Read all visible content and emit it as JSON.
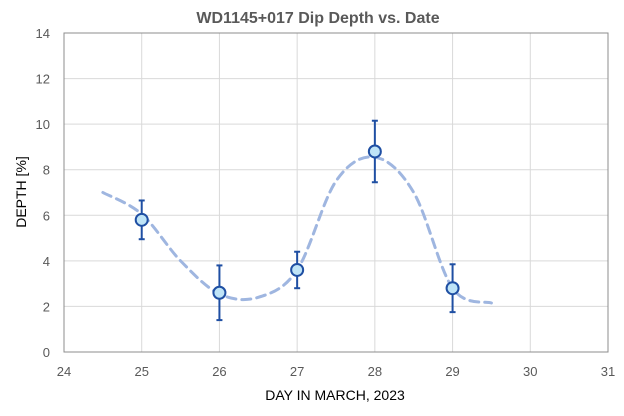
{
  "chart_data": {
    "type": "scatter",
    "title": "WD1145+017 Dip Depth vs. Date",
    "xlabel": "DAY IN MARCH, 2023",
    "ylabel": "DEPTH [%]",
    "xlim": [
      24,
      31
    ],
    "ylim": [
      0,
      14
    ],
    "x_ticks": [
      24,
      25,
      26,
      27,
      28,
      29,
      30,
      31
    ],
    "y_ticks": [
      0,
      2,
      4,
      6,
      8,
      10,
      12,
      14
    ],
    "grid": true,
    "legend": "none",
    "series": [
      {
        "kind": "points",
        "x": [
          25,
          26,
          27,
          28,
          29
        ],
        "y": [
          5.8,
          2.6,
          3.6,
          8.8,
          2.8
        ],
        "yerr": [
          0.85,
          1.2,
          0.8,
          1.35,
          1.05
        ],
        "color": "#1f4fa3",
        "fill": "#bfe4f7"
      },
      {
        "kind": "trend-line",
        "x": [
          24.5,
          25,
          25.5,
          26,
          26.5,
          27,
          27.5,
          28,
          28.5,
          29,
          29.5
        ],
        "y": [
          7.0,
          6.05,
          4.0,
          2.55,
          2.4,
          3.6,
          7.5,
          8.55,
          7.0,
          2.8,
          2.15
        ],
        "color": "#9fb6e0",
        "style": "dashed"
      }
    ]
  }
}
